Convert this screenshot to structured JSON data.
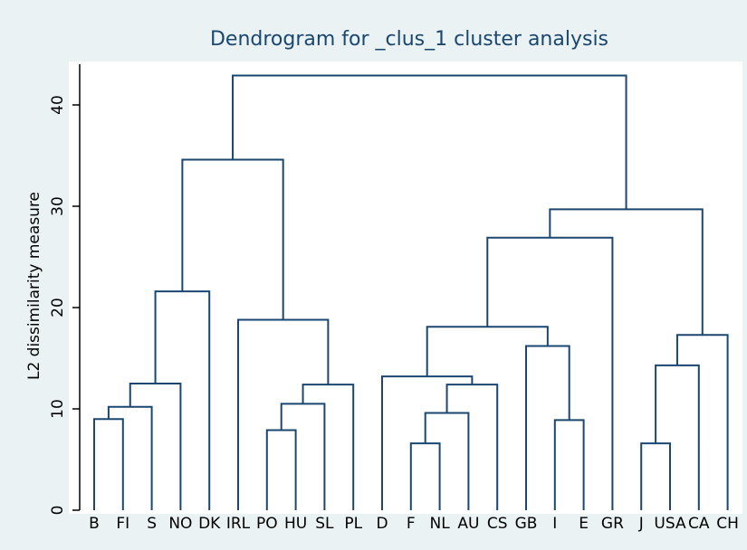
{
  "chart_data": {
    "type": "dendrogram",
    "title": "Dendrogram for _clus_1 cluster analysis",
    "y_label": "L2 dissimilarity measure",
    "color": "#1a476f",
    "categories": [
      "B",
      "FI",
      "S",
      "NO",
      "DK",
      "IRL",
      "PO",
      "HU",
      "SL",
      "PL",
      "D",
      "F",
      "NL",
      "AU",
      "CS",
      "GB",
      "I",
      "E",
      "GR",
      "J",
      "USA",
      "CA",
      "CH"
    ],
    "merges": [
      {
        "children": [
          0,
          1
        ],
        "height": 9.0
      },
      {
        "children": [
          23,
          2
        ],
        "height": 10.2
      },
      {
        "children": [
          24,
          3
        ],
        "height": 12.5
      },
      {
        "children": [
          25,
          4
        ],
        "height": 21.6
      },
      {
        "children": [
          6,
          7
        ],
        "height": 7.9
      },
      {
        "children": [
          27,
          8
        ],
        "height": 10.5
      },
      {
        "children": [
          28,
          9
        ],
        "height": 12.4
      },
      {
        "children": [
          5,
          29
        ],
        "height": 18.8
      },
      {
        "children": [
          26,
          30
        ],
        "height": 34.6
      },
      {
        "children": [
          11,
          12
        ],
        "height": 6.6
      },
      {
        "children": [
          32,
          13
        ],
        "height": 9.6
      },
      {
        "children": [
          33,
          14
        ],
        "height": 12.4
      },
      {
        "children": [
          10,
          34
        ],
        "height": 13.2
      },
      {
        "children": [
          16,
          17
        ],
        "height": 8.9
      },
      {
        "children": [
          15,
          36
        ],
        "height": 16.2
      },
      {
        "children": [
          35,
          37
        ],
        "height": 18.1
      },
      {
        "children": [
          38,
          18
        ],
        "height": 26.9
      },
      {
        "children": [
          19,
          20
        ],
        "height": 6.6
      },
      {
        "children": [
          40,
          21
        ],
        "height": 14.3
      },
      {
        "children": [
          41,
          22
        ],
        "height": 17.3
      },
      {
        "children": [
          39,
          42
        ],
        "height": 29.7
      },
      {
        "children": [
          31,
          43
        ],
        "height": 42.9
      }
    ],
    "ylim": [
      0,
      44
    ],
    "yticks": [
      0,
      10,
      20,
      30,
      40
    ]
  }
}
